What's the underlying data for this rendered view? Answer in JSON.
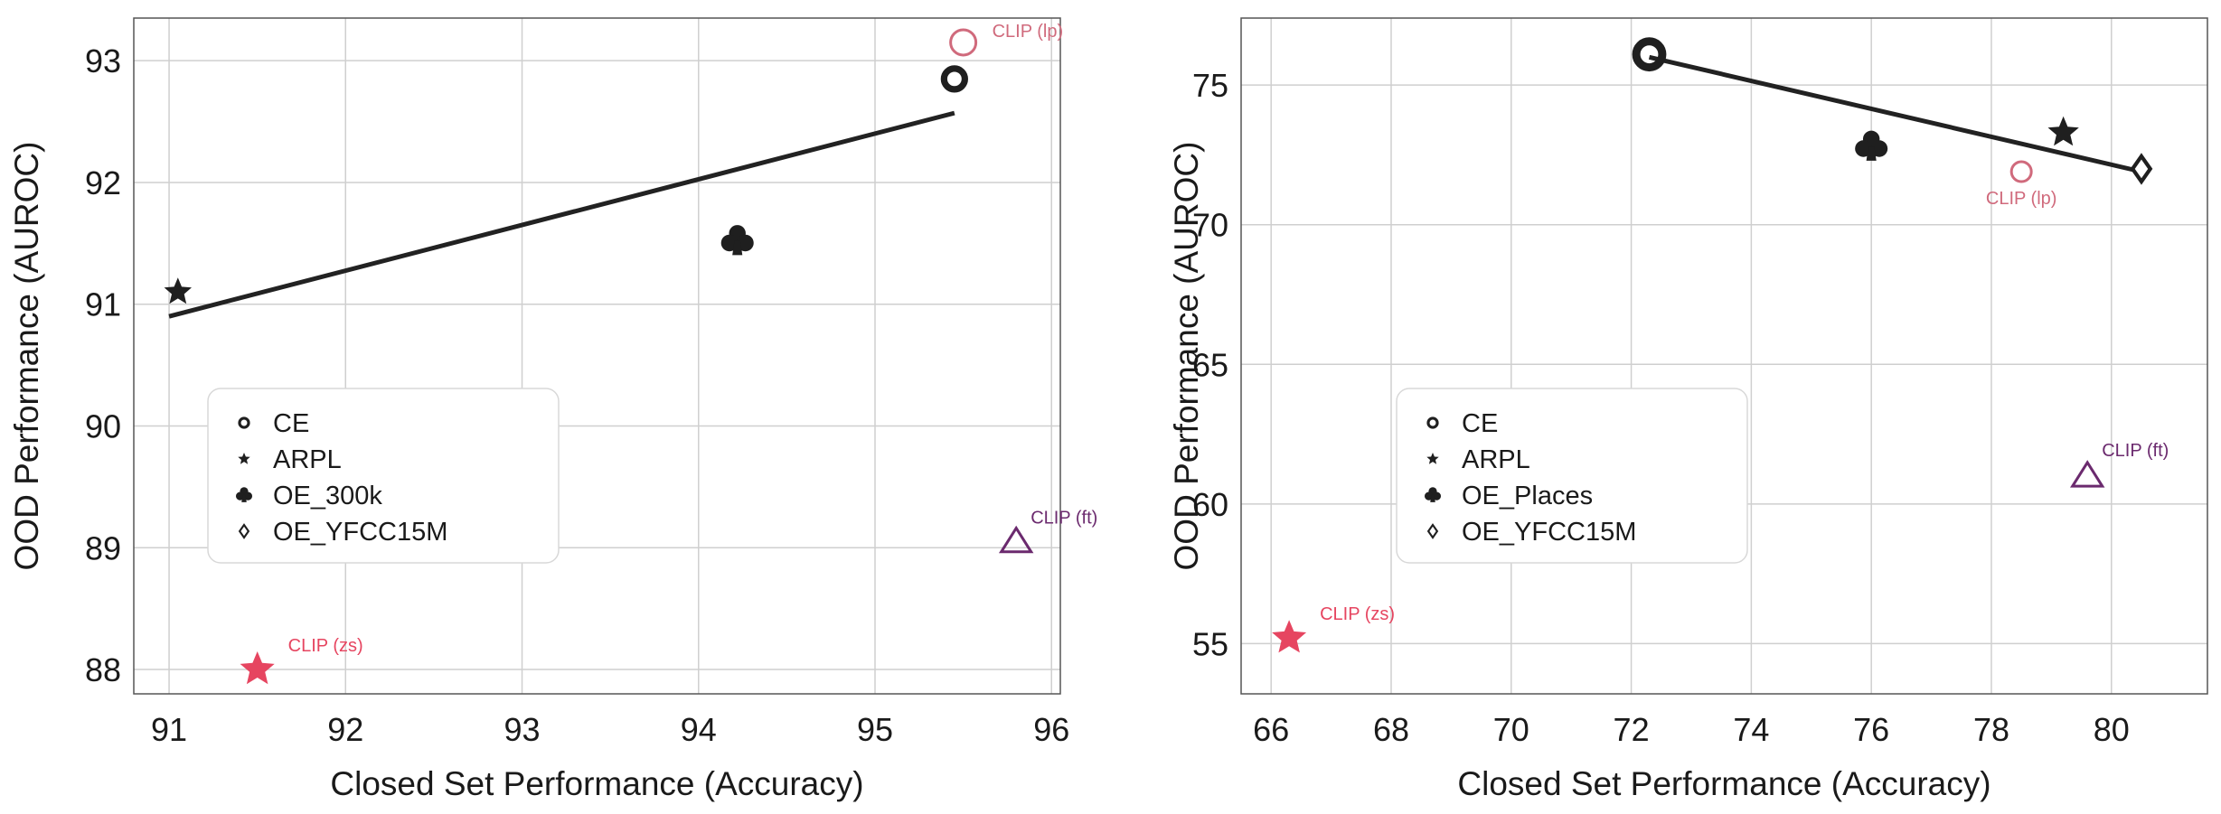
{
  "chart_data": [
    {
      "type": "scatter",
      "xlabel": "Closed Set Performance (Accuracy)",
      "ylabel": "OOD Performance (AUROC)",
      "xlim": [
        90.8,
        96.05
      ],
      "ylim": [
        87.8,
        93.35
      ],
      "xticks": [
        "91",
        "92",
        "93",
        "94",
        "95",
        "96"
      ],
      "yticks": [
        "88",
        "89",
        "90",
        "91",
        "92",
        "93"
      ],
      "grid": true,
      "legend_placement": "lower-left",
      "series": [
        {
          "name": "CE",
          "marker": "ring",
          "x": 95.45,
          "y": 92.85
        },
        {
          "name": "ARPL",
          "marker": "star",
          "x": 91.05,
          "y": 91.1
        },
        {
          "name": "OE_300k",
          "marker": "club",
          "x": 94.22,
          "y": 91.52
        },
        {
          "name": "OE_YFCC15M",
          "marker": "diamond",
          "x": null,
          "y": null
        }
      ],
      "trend_line": {
        "x": [
          91.0,
          95.45
        ],
        "y": [
          90.9,
          92.57
        ],
        "color": "#222222"
      },
      "annotations": [
        {
          "label": "CLIP (lp)",
          "marker": "circle",
          "x": 95.5,
          "y": 93.15,
          "color": "#d06a7c"
        },
        {
          "label": "CLIP (ft)",
          "marker": "triangle",
          "x": 95.8,
          "y": 89.05,
          "color": "#6b2a6e"
        },
        {
          "label": "CLIP (zs)",
          "marker": "star",
          "x": 91.5,
          "y": 88.0,
          "color": "#e64560"
        }
      ]
    },
    {
      "type": "scatter",
      "xlabel": "Closed Set Performance (Accuracy)",
      "ylabel": "OOD Performance (AUROC)",
      "xlim": [
        65.5,
        81.6
      ],
      "ylim": [
        53.2,
        77.4
      ],
      "xticks": [
        "66",
        "68",
        "70",
        "72",
        "74",
        "76",
        "78",
        "80"
      ],
      "yticks": [
        "55",
        "60",
        "65",
        "70",
        "75"
      ],
      "grid": true,
      "legend_placement": "lower-left",
      "series": [
        {
          "name": "CE",
          "marker": "ring",
          "x": 72.3,
          "y": 76.1
        },
        {
          "name": "ARPL",
          "marker": "star",
          "x": 79.2,
          "y": 73.3
        },
        {
          "name": "OE_Places",
          "marker": "club",
          "x": 76.0,
          "y": 72.8
        },
        {
          "name": "OE_YFCC15M",
          "marker": "diamond",
          "x": 80.5,
          "y": 72.0
        }
      ],
      "trend_line": {
        "x": [
          72.3,
          80.5
        ],
        "y": [
          76.0,
          71.9
        ],
        "color": "#222222"
      },
      "annotations": [
        {
          "label": "CLIP (lp)",
          "marker": "circle",
          "x": 78.5,
          "y": 71.9,
          "color": "#d06a7c"
        },
        {
          "label": "CLIP (ft)",
          "marker": "triangle",
          "x": 79.6,
          "y": 61.0,
          "color": "#6b2a6e"
        },
        {
          "label": "CLIP (zs)",
          "marker": "star",
          "x": 66.3,
          "y": 55.2,
          "color": "#e64560"
        }
      ]
    }
  ]
}
